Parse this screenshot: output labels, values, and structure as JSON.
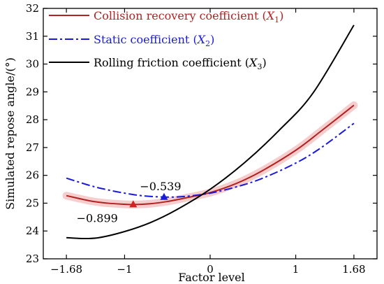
{
  "chart_data": {
    "type": "line",
    "xlabel": "Factor level",
    "ylabel": "Simulated repose angle/(°)",
    "xlim": [
      -1.95,
      1.95
    ],
    "ylim": [
      23,
      32
    ],
    "x_ticks": [
      -1.68,
      -1,
      0,
      1,
      1.68
    ],
    "x_tick_labels": [
      "−1.68",
      "−1",
      "0",
      "1",
      "1.68"
    ],
    "y_ticks": [
      23,
      24,
      25,
      26,
      27,
      28,
      29,
      30,
      31,
      32
    ],
    "legend_position": "top-left",
    "series": [
      {
        "name_text": "Collision recovery coefficient (",
        "name_var": "X",
        "name_sub": "1",
        "name_close": ")",
        "color": "#b22222",
        "style": "solid",
        "band": true,
        "band_color": "#f4c4c4",
        "x": [
          -1.68,
          -1.4,
          -1.2,
          -1.0,
          -0.899,
          -0.7,
          -0.5,
          -0.3,
          0.0,
          0.3,
          0.6,
          1.0,
          1.3,
          1.68
        ],
        "y": [
          25.27,
          25.08,
          25.0,
          24.96,
          24.95,
          24.98,
          25.06,
          25.18,
          25.38,
          25.7,
          26.15,
          26.9,
          27.6,
          28.52
        ]
      },
      {
        "name_text": "Static coefficient (",
        "name_var": "X",
        "name_sub": "2",
        "name_close": ")",
        "color": "#1a1adc",
        "style": "dashdot",
        "band": false,
        "x": [
          -1.68,
          -1.4,
          -1.2,
          -1.0,
          -0.8,
          -0.539,
          -0.3,
          0.0,
          0.3,
          0.6,
          1.0,
          1.3,
          1.68
        ],
        "y": [
          25.9,
          25.63,
          25.48,
          25.36,
          25.27,
          25.22,
          25.24,
          25.36,
          25.58,
          25.88,
          26.44,
          27.0,
          27.87
        ]
      },
      {
        "name_text": "Rolling friction coefficient (",
        "name_var": "X",
        "name_sub": "3",
        "name_close": ")",
        "color": "#000000",
        "style": "solid",
        "band": false,
        "x": [
          -1.68,
          -1.5,
          -1.3,
          -1.0,
          -0.7,
          -0.4,
          0.0,
          0.4,
          0.8,
          1.2,
          1.68
        ],
        "y": [
          23.76,
          23.73,
          23.76,
          23.98,
          24.3,
          24.75,
          25.5,
          26.45,
          27.6,
          28.95,
          31.4
        ]
      }
    ],
    "annotations": [
      {
        "text": "−0.899",
        "x": -0.899,
        "y": 24.95,
        "series": 0,
        "marker_color": "#d42020",
        "label_x": -1.32,
        "label_y": 24.47
      },
      {
        "text": "−0.539",
        "x": -0.539,
        "y": 25.22,
        "series": 1,
        "marker_color": "#1a1adc",
        "label_x": -0.58,
        "label_y": 25.62
      }
    ]
  }
}
